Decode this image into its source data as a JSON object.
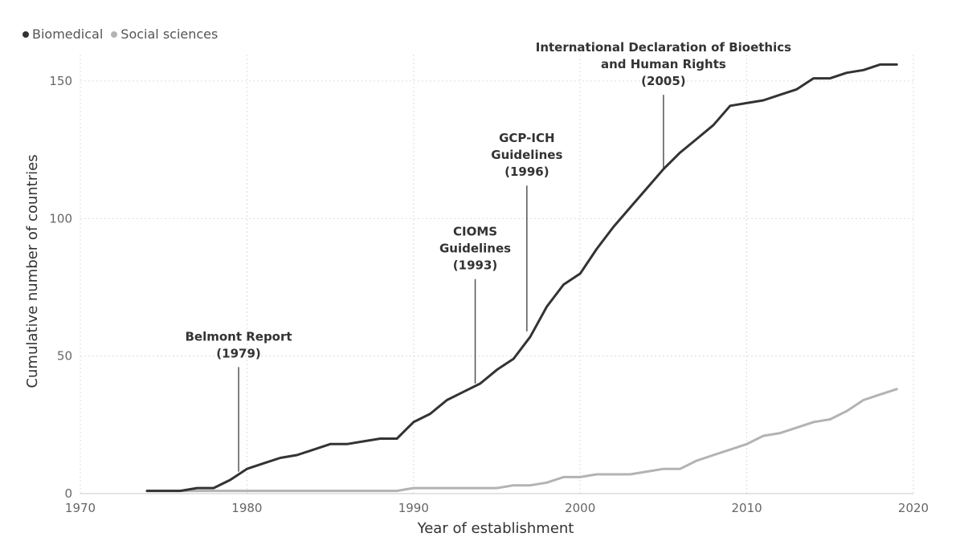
{
  "chart_data": {
    "type": "line",
    "xlabel": "Year of establishment",
    "ylabel": "Cumulative number of countries",
    "xlim": [
      1970,
      2020
    ],
    "ylim": [
      0,
      160
    ],
    "xticks": [
      1970,
      1980,
      1990,
      2000,
      2010,
      2020
    ],
    "yticks": [
      0,
      50,
      100,
      150
    ],
    "grid": true,
    "legend_position": "top-left",
    "series": [
      {
        "name": "Biomedical",
        "color": "#333333",
        "x": [
          1974,
          1975,
          1976,
          1977,
          1978,
          1979,
          1980,
          1981,
          1982,
          1983,
          1984,
          1985,
          1986,
          1987,
          1988,
          1989,
          1990,
          1991,
          1992,
          1993,
          1994,
          1995,
          1996,
          1997,
          1998,
          1999,
          2000,
          2001,
          2002,
          2003,
          2004,
          2005,
          2006,
          2007,
          2008,
          2009,
          2010,
          2011,
          2012,
          2013,
          2014,
          2015,
          2016,
          2017,
          2018,
          2019
        ],
        "values": [
          1,
          1,
          1,
          2,
          2,
          5,
          9,
          11,
          13,
          14,
          16,
          18,
          18,
          19,
          20,
          20,
          26,
          29,
          34,
          37,
          40,
          45,
          49,
          57,
          68,
          76,
          80,
          89,
          97,
          104,
          111,
          118,
          124,
          129,
          134,
          141,
          142,
          143,
          145,
          147,
          151,
          151,
          153,
          154,
          156,
          156
        ]
      },
      {
        "name": "Social sciences",
        "color": "#b3b3b3",
        "x": [
          1974,
          1975,
          1976,
          1977,
          1978,
          1979,
          1980,
          1981,
          1982,
          1983,
          1984,
          1985,
          1986,
          1987,
          1988,
          1989,
          1990,
          1991,
          1992,
          1993,
          1994,
          1995,
          1996,
          1997,
          1998,
          1999,
          2000,
          2001,
          2002,
          2003,
          2004,
          2005,
          2006,
          2007,
          2008,
          2009,
          2010,
          2011,
          2012,
          2013,
          2014,
          2015,
          2016,
          2017,
          2018,
          2019
        ],
        "values": [
          1,
          1,
          1,
          1,
          1,
          1,
          1,
          1,
          1,
          1,
          1,
          1,
          1,
          1,
          1,
          1,
          2,
          2,
          2,
          2,
          2,
          2,
          3,
          3,
          4,
          6,
          6,
          7,
          7,
          7,
          8,
          9,
          9,
          12,
          14,
          16,
          18,
          21,
          22,
          24,
          26,
          27,
          30,
          34,
          36,
          38
        ]
      }
    ],
    "annotations": [
      {
        "lines": [
          "Belmont Report",
          "(1979)"
        ],
        "x": 1979.5,
        "y_top": 46,
        "y_bottom": 8
      },
      {
        "lines": [
          "CIOMS",
          "Guidelines",
          "(1993)"
        ],
        "x": 1993.7,
        "y_top": 78,
        "y_bottom": 40
      },
      {
        "lines": [
          "GCP-ICH",
          "Guidelines",
          "(1996)"
        ],
        "x": 1996.8,
        "y_top": 112,
        "y_bottom": 59
      },
      {
        "lines": [
          "International Declaration of Bioethics",
          "and Human Rights",
          "(2005)"
        ],
        "x": 2005,
        "y_top": 145,
        "y_bottom": 118
      }
    ]
  }
}
